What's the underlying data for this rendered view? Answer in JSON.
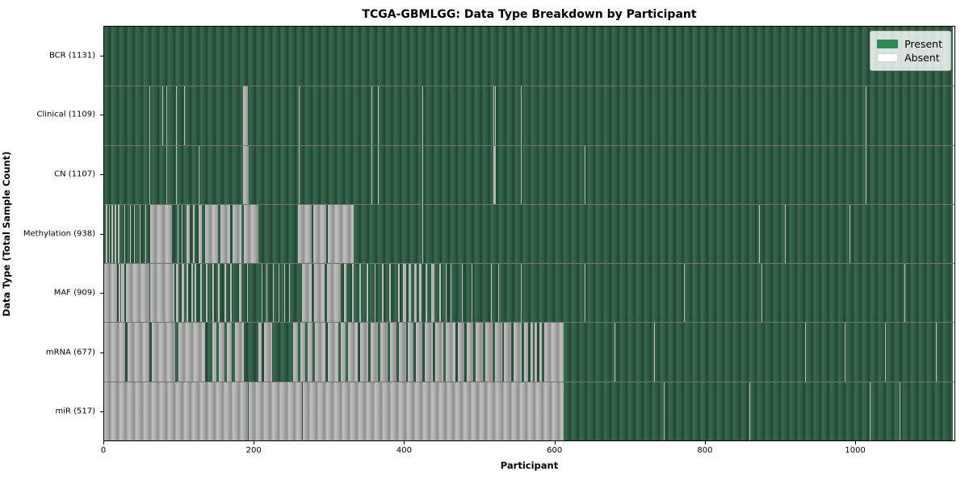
{
  "title": "TCGA-GBMLGG: Data Type Breakdown by Participant",
  "xlabel": "Participant",
  "ylabel": "Data Type (Total Sample Count)",
  "legend": {
    "present_label": "Present",
    "absent_label": "Absent"
  },
  "colors": {
    "present": "#2e8b57",
    "absent": "#ffffff",
    "present_bar_shade": "#2d5a42",
    "absent_bar_shade": "#a8a8a8",
    "legend_background": "#d9d9d9",
    "axis": "#000000"
  },
  "chart_data": {
    "type": "heatmap",
    "title": "TCGA-GBMLGG: Data Type Breakdown by Participant",
    "xlabel": "Participant",
    "ylabel": "Data Type (Total Sample Count)",
    "legend_entries": [
      "Present",
      "Absent"
    ],
    "legend_position": "upper right",
    "n_participants": 1131,
    "x_domain": [
      0,
      1133
    ],
    "x_ticks": [
      0,
      200,
      400,
      600,
      800,
      1000
    ],
    "rows": [
      {
        "name": "BCR",
        "label": "BCR (1131)",
        "present_count": 1131,
        "absent_segments": []
      },
      {
        "name": "Clinical",
        "label": "Clinical (1109)",
        "present_count": 1109,
        "absent_segments": [
          [
            60,
            61
          ],
          [
            78,
            79
          ],
          [
            83,
            84
          ],
          [
            96,
            97
          ],
          [
            107,
            108
          ],
          [
            185,
            192
          ],
          [
            259,
            260
          ],
          [
            304,
            305
          ],
          [
            356,
            357
          ],
          [
            365,
            366
          ],
          [
            424,
            425
          ],
          [
            519,
            520
          ],
          [
            521,
            522
          ],
          [
            555,
            556
          ],
          [
            870,
            871
          ],
          [
            1015,
            1016
          ]
        ]
      },
      {
        "name": "CN",
        "label": "CN (1107)",
        "present_count": 1107,
        "absent_segments": [
          [
            60,
            61
          ],
          [
            83,
            84
          ],
          [
            96,
            97
          ],
          [
            126,
            127
          ],
          [
            185,
            193
          ],
          [
            259,
            260
          ],
          [
            304,
            305
          ],
          [
            356,
            357
          ],
          [
            365,
            366
          ],
          [
            424,
            425
          ],
          [
            519,
            522
          ],
          [
            555,
            556
          ],
          [
            640,
            641
          ],
          [
            870,
            871
          ],
          [
            1015,
            1016
          ]
        ]
      },
      {
        "name": "Methylation",
        "label": "Methylation (938)",
        "present_count": 938,
        "absent_segments": [
          [
            2,
            4
          ],
          [
            6,
            8
          ],
          [
            10,
            12
          ],
          [
            14,
            16
          ],
          [
            18,
            20
          ],
          [
            27,
            28
          ],
          [
            34,
            35
          ],
          [
            40,
            41
          ],
          [
            47,
            48
          ],
          [
            55,
            56
          ],
          [
            61,
            90
          ],
          [
            98,
            99
          ],
          [
            103,
            104
          ],
          [
            110,
            114
          ],
          [
            118,
            121
          ],
          [
            126,
            130
          ],
          [
            134,
            152
          ],
          [
            155,
            168
          ],
          [
            171,
            183
          ],
          [
            186,
            205
          ],
          [
            258,
            277
          ],
          [
            279,
            296
          ],
          [
            298,
            332
          ],
          [
            424,
            425
          ],
          [
            873,
            874
          ],
          [
            907,
            908
          ],
          [
            993,
            994
          ]
        ]
      },
      {
        "name": "MAF",
        "label": "MAF (909)",
        "present_count": 909,
        "absent_segments": [
          [
            0,
            17
          ],
          [
            19,
            21
          ],
          [
            23,
            27
          ],
          [
            29,
            60
          ],
          [
            61,
            94
          ],
          [
            96,
            99
          ],
          [
            103,
            106
          ],
          [
            110,
            112
          ],
          [
            116,
            118
          ],
          [
            121,
            123
          ],
          [
            128,
            130
          ],
          [
            136,
            138
          ],
          [
            144,
            146
          ],
          [
            152,
            154
          ],
          [
            160,
            162
          ],
          [
            168,
            170
          ],
          [
            180,
            183
          ],
          [
            190,
            192
          ],
          [
            210,
            211
          ],
          [
            216,
            217
          ],
          [
            225,
            226
          ],
          [
            232,
            233
          ],
          [
            240,
            241
          ],
          [
            246,
            248
          ],
          [
            264,
            277
          ],
          [
            280,
            294
          ],
          [
            297,
            315
          ],
          [
            320,
            323
          ],
          [
            330,
            332
          ],
          [
            340,
            342
          ],
          [
            350,
            352
          ],
          [
            360,
            362
          ],
          [
            370,
            372
          ],
          [
            380,
            382
          ],
          [
            392,
            394
          ],
          [
            398,
            402
          ],
          [
            406,
            409
          ],
          [
            413,
            416
          ],
          [
            420,
            423
          ],
          [
            428,
            430
          ],
          [
            436,
            440
          ],
          [
            447,
            449
          ],
          [
            455,
            456
          ],
          [
            462,
            463
          ],
          [
            477,
            478
          ],
          [
            490,
            491
          ],
          [
            502,
            503
          ],
          [
            515,
            517
          ],
          [
            525,
            526
          ],
          [
            555,
            556
          ],
          [
            573,
            574
          ],
          [
            640,
            641
          ],
          [
            700,
            701
          ],
          [
            773,
            774
          ],
          [
            876,
            877
          ],
          [
            1066,
            1067
          ]
        ]
      },
      {
        "name": "mRNA",
        "label": "mRNA (677)",
        "present_count": 677,
        "absent_segments": [
          [
            0,
            28
          ],
          [
            31,
            60
          ],
          [
            63,
            95
          ],
          [
            99,
            135
          ],
          [
            144,
            150
          ],
          [
            153,
            160
          ],
          [
            164,
            170
          ],
          [
            174,
            186
          ],
          [
            206,
            210
          ],
          [
            213,
            224
          ],
          [
            252,
            258
          ],
          [
            261,
            268
          ],
          [
            271,
            278
          ],
          [
            281,
            295
          ],
          [
            298,
            312
          ],
          [
            315,
            322
          ],
          [
            325,
            338
          ],
          [
            341,
            352
          ],
          [
            355,
            365
          ],
          [
            368,
            378
          ],
          [
            381,
            390
          ],
          [
            393,
            402
          ],
          [
            405,
            412
          ],
          [
            415,
            424
          ],
          [
            427,
            438
          ],
          [
            441,
            452
          ],
          [
            455,
            468
          ],
          [
            471,
            480
          ],
          [
            483,
            492
          ],
          [
            495,
            505
          ],
          [
            508,
            518
          ],
          [
            521,
            530
          ],
          [
            533,
            542
          ],
          [
            545,
            556
          ],
          [
            559,
            565
          ],
          [
            568,
            571
          ],
          [
            574,
            577
          ],
          [
            580,
            583
          ],
          [
            586,
            612
          ],
          [
            680,
            681
          ],
          [
            733,
            734
          ],
          [
            934,
            935
          ],
          [
            987,
            988
          ],
          [
            1040,
            1042
          ],
          [
            1108,
            1109
          ]
        ]
      },
      {
        "name": "miR",
        "label": "miR (517)",
        "present_count": 517,
        "absent_segments": [
          [
            0,
            191
          ],
          [
            193,
            264
          ],
          [
            265,
            612
          ],
          [
            658,
            659
          ],
          [
            746,
            747
          ],
          [
            860,
            861
          ],
          [
            1020,
            1021
          ],
          [
            1060,
            1061
          ]
        ]
      }
    ]
  }
}
